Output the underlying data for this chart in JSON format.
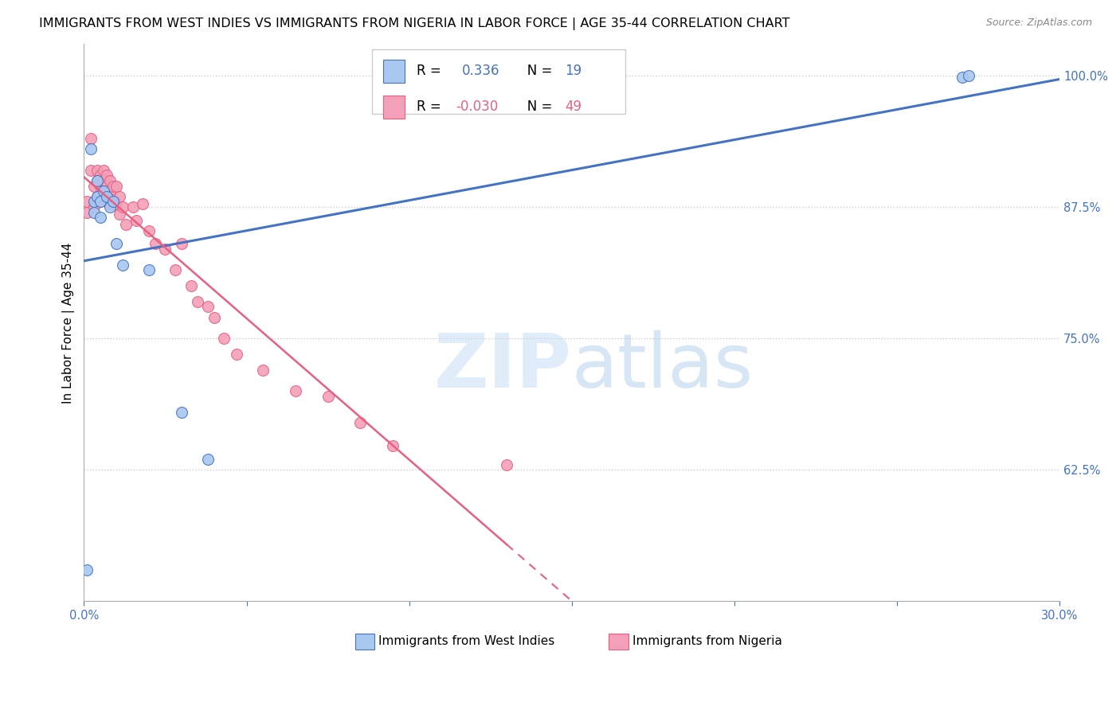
{
  "title": "IMMIGRANTS FROM WEST INDIES VS IMMIGRANTS FROM NIGERIA IN LABOR FORCE | AGE 35-44 CORRELATION CHART",
  "source": "Source: ZipAtlas.com",
  "ylabel": "In Labor Force | Age 35-44",
  "xlim": [
    0.0,
    0.3
  ],
  "ylim": [
    0.5,
    1.03
  ],
  "xticks": [
    0.0,
    0.05,
    0.1,
    0.15,
    0.2,
    0.25,
    0.3
  ],
  "xticklabels": [
    "0.0%",
    "",
    "",
    "",
    "",
    "",
    "30.0%"
  ],
  "yticks": [
    0.625,
    0.75,
    0.875,
    1.0
  ],
  "yticklabels": [
    "62.5%",
    "75.0%",
    "87.5%",
    "100.0%"
  ],
  "R_blue": 0.336,
  "N_blue": 19,
  "R_pink": -0.03,
  "N_pink": 49,
  "legend_label_blue": "Immigrants from West Indies",
  "legend_label_pink": "Immigrants from Nigeria",
  "blue_color": "#a8c8f0",
  "pink_color": "#f4a0b8",
  "blue_line_color": "#4472c4",
  "pink_line_color": "#e86080",
  "marker_size": 10,
  "blue_scatter_x": [
    0.001,
    0.002,
    0.003,
    0.003,
    0.004,
    0.004,
    0.005,
    0.005,
    0.006,
    0.007,
    0.008,
    0.009,
    0.01,
    0.012,
    0.02,
    0.03,
    0.038,
    0.27,
    0.272
  ],
  "blue_scatter_y": [
    0.53,
    0.93,
    0.88,
    0.87,
    0.9,
    0.885,
    0.88,
    0.865,
    0.89,
    0.885,
    0.875,
    0.88,
    0.84,
    0.82,
    0.815,
    0.68,
    0.635,
    0.998,
    1.0
  ],
  "pink_scatter_x": [
    0.001,
    0.001,
    0.002,
    0.002,
    0.003,
    0.003,
    0.004,
    0.004,
    0.004,
    0.005,
    0.005,
    0.005,
    0.006,
    0.006,
    0.006,
    0.007,
    0.007,
    0.007,
    0.008,
    0.008,
    0.008,
    0.009,
    0.009,
    0.01,
    0.01,
    0.011,
    0.011,
    0.012,
    0.013,
    0.015,
    0.016,
    0.018,
    0.02,
    0.022,
    0.025,
    0.028,
    0.03,
    0.033,
    0.035,
    0.038,
    0.04,
    0.043,
    0.047,
    0.055,
    0.065,
    0.075,
    0.085,
    0.095,
    0.13
  ],
  "pink_scatter_y": [
    0.88,
    0.87,
    0.94,
    0.91,
    0.895,
    0.875,
    0.91,
    0.9,
    0.885,
    0.905,
    0.895,
    0.88,
    0.91,
    0.9,
    0.888,
    0.905,
    0.895,
    0.88,
    0.9,
    0.89,
    0.878,
    0.895,
    0.882,
    0.895,
    0.878,
    0.885,
    0.868,
    0.875,
    0.858,
    0.875,
    0.862,
    0.878,
    0.852,
    0.84,
    0.835,
    0.815,
    0.84,
    0.8,
    0.785,
    0.78,
    0.77,
    0.75,
    0.735,
    0.72,
    0.7,
    0.695,
    0.67,
    0.648,
    0.63
  ],
  "watermark_zip": "ZIP",
  "watermark_atlas": "atlas",
  "background_color": "#ffffff",
  "grid_color": "#cccccc",
  "title_fontsize": 11.5,
  "axis_label_fontsize": 11,
  "tick_fontsize": 10.5
}
